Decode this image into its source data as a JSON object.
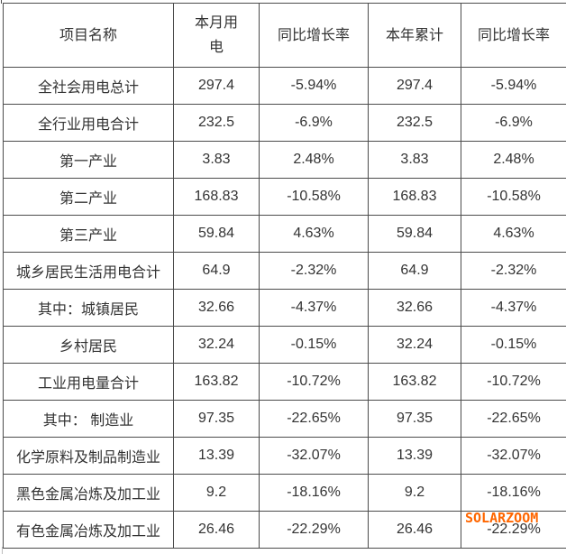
{
  "table": {
    "headers": {
      "name": "项目名称",
      "month": "本月用\n电",
      "month_yoy": "同比增长率",
      "ytd": "本年累计",
      "ytd_yoy": "同比增长率"
    },
    "rows": [
      {
        "name": "全社会用电总计",
        "month": "297.4",
        "month_yoy": "-5.94%",
        "ytd": "297.4",
        "ytd_yoy": "-5.94%"
      },
      {
        "name": "全行业用电合计",
        "month": "232.5",
        "month_yoy": "-6.9%",
        "ytd": "232.5",
        "ytd_yoy": "-6.9%"
      },
      {
        "name": "第一产业",
        "month": "3.83",
        "month_yoy": "2.48%",
        "ytd": "3.83",
        "ytd_yoy": "2.48%"
      },
      {
        "name": "第二产业",
        "month": "168.83",
        "month_yoy": "-10.58%",
        "ytd": "168.83",
        "ytd_yoy": "-10.58%"
      },
      {
        "name": "第三产业",
        "month": "59.84",
        "month_yoy": "4.63%",
        "ytd": "59.84",
        "ytd_yoy": "4.63%"
      },
      {
        "name": "城乡居民生活用电合计",
        "month": "64.9",
        "month_yoy": "-2.32%",
        "ytd": "64.9",
        "ytd_yoy": "-2.32%"
      },
      {
        "name": "其中：城镇居民",
        "month": "32.66",
        "month_yoy": "-4.37%",
        "ytd": "32.66",
        "ytd_yoy": "-4.37%"
      },
      {
        "name": "乡村居民",
        "month": "32.24",
        "month_yoy": "-0.15%",
        "ytd": "32.24",
        "ytd_yoy": "-0.15%"
      },
      {
        "name": "工业用电量合计",
        "month": "163.82",
        "month_yoy": "-10.72%",
        "ytd": "163.82",
        "ytd_yoy": "-10.72%"
      },
      {
        "name": "其中： 制造业",
        "month": "97.35",
        "month_yoy": "-22.65%",
        "ytd": "97.35",
        "ytd_yoy": "-22.65%"
      },
      {
        "name": "化学原料及制品制造业",
        "month": "13.39",
        "month_yoy": "-32.07%",
        "ytd": "13.39",
        "ytd_yoy": "-32.07%"
      },
      {
        "name": "黑色金属冶炼及加工业",
        "month": "9.2",
        "month_yoy": "-18.16%",
        "ytd": "9.2",
        "ytd_yoy": "-18.16%"
      },
      {
        "name": "有色金属冶炼及加工业",
        "month": "26.46",
        "month_yoy": "-22.29%",
        "ytd": "26.46",
        "ytd_yoy": "-22.29%"
      }
    ]
  },
  "watermark": {
    "text": "SOLARZOOM"
  },
  "colors": {
    "border": "#4c4c4c",
    "text": "#333333",
    "watermark_orange": "#FF6600",
    "background": "#ffffff"
  },
  "chart_data": {
    "type": "table",
    "title": "",
    "columns": [
      "项目名称",
      "本月用电",
      "同比增长率",
      "本年累计",
      "同比增长率"
    ],
    "rows": [
      [
        "全社会用电总计",
        297.4,
        "-5.94%",
        297.4,
        "-5.94%"
      ],
      [
        "全行业用电合计",
        232.5,
        "-6.9%",
        232.5,
        "-6.9%"
      ],
      [
        "第一产业",
        3.83,
        "2.48%",
        3.83,
        "2.48%"
      ],
      [
        "第二产业",
        168.83,
        "-10.58%",
        168.83,
        "-10.58%"
      ],
      [
        "第三产业",
        59.84,
        "4.63%",
        59.84,
        "4.63%"
      ],
      [
        "城乡居民生活用电合计",
        64.9,
        "-2.32%",
        64.9,
        "-2.32%"
      ],
      [
        "其中：城镇居民",
        32.66,
        "-4.37%",
        32.66,
        "-4.37%"
      ],
      [
        "乡村居民",
        32.24,
        "-0.15%",
        32.24,
        "-0.15%"
      ],
      [
        "工业用电量合计",
        163.82,
        "-10.72%",
        163.82,
        "-10.72%"
      ],
      [
        "其中： 制造业",
        97.35,
        "-22.65%",
        97.35,
        "-22.65%"
      ],
      [
        "化学原料及制品制造业",
        13.39,
        "-32.07%",
        13.39,
        "-32.07%"
      ],
      [
        "黑色金属冶炼及加工业",
        9.2,
        "-18.16%",
        9.2,
        "-18.16%"
      ],
      [
        "有色金属冶炼及加工业",
        26.46,
        "-22.29%",
        26.46,
        "-22.29%"
      ]
    ]
  }
}
